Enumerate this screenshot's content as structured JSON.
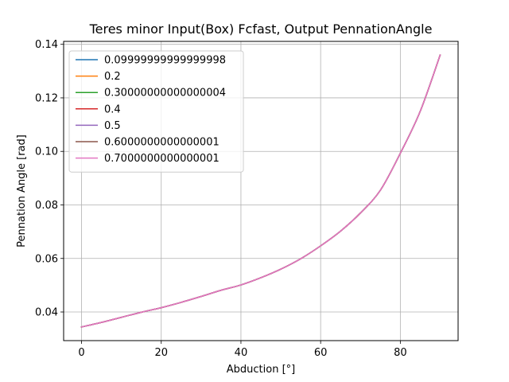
{
  "chart_data": {
    "type": "line",
    "title": "Teres minor Input(Box) Fcfast, Output PennationAngle",
    "xlabel": "Abduction [°]",
    "ylabel": "Pennation Angle [rad]",
    "xlim": [
      -4.5,
      94.5
    ],
    "ylim": [
      0.0293,
      0.1411
    ],
    "xticks": [
      0,
      20,
      40,
      60,
      80
    ],
    "xtick_labels": [
      "0",
      "20",
      "40",
      "60",
      "80"
    ],
    "yticks": [
      0.04,
      0.06,
      0.08,
      0.1,
      0.12,
      0.14
    ],
    "ytick_labels": [
      "0.04",
      "0.06",
      "0.08",
      "0.10",
      "0.12",
      "0.14"
    ],
    "grid": true,
    "legend_position": "top-left",
    "x": [
      0,
      5,
      10,
      15,
      20,
      25,
      30,
      35,
      40,
      45,
      50,
      55,
      60,
      65,
      70,
      75,
      80,
      85,
      90
    ],
    "series": [
      {
        "name": "0.09999999999999998",
        "color": "#1f77b4",
        "values": [
          0.0344,
          0.0361,
          0.038,
          0.0399,
          0.0416,
          0.0436,
          0.0458,
          0.0481,
          0.0501,
          0.0528,
          0.056,
          0.0599,
          0.0647,
          0.0702,
          0.077,
          0.0855,
          0.0993,
          0.115,
          0.136
        ]
      },
      {
        "name": "0.2",
        "color": "#ff7f0e",
        "values": [
          0.0344,
          0.0361,
          0.038,
          0.0399,
          0.0416,
          0.0436,
          0.0458,
          0.0481,
          0.0501,
          0.0528,
          0.056,
          0.0599,
          0.0647,
          0.0702,
          0.077,
          0.0855,
          0.0993,
          0.115,
          0.136
        ]
      },
      {
        "name": "0.30000000000000004",
        "color": "#2ca02c",
        "values": [
          0.0344,
          0.0361,
          0.038,
          0.0399,
          0.0416,
          0.0436,
          0.0458,
          0.0481,
          0.0501,
          0.0528,
          0.056,
          0.0599,
          0.0647,
          0.0702,
          0.077,
          0.0855,
          0.0993,
          0.115,
          0.136
        ]
      },
      {
        "name": "0.4",
        "color": "#d62728",
        "values": [
          0.0344,
          0.0361,
          0.038,
          0.0399,
          0.0416,
          0.0436,
          0.0458,
          0.0481,
          0.0501,
          0.0528,
          0.056,
          0.0599,
          0.0647,
          0.0702,
          0.077,
          0.0855,
          0.0993,
          0.115,
          0.136
        ]
      },
      {
        "name": "0.5",
        "color": "#9467bd",
        "values": [
          0.0344,
          0.0361,
          0.038,
          0.0399,
          0.0416,
          0.0436,
          0.0458,
          0.0481,
          0.0501,
          0.0528,
          0.056,
          0.0599,
          0.0647,
          0.0702,
          0.077,
          0.0855,
          0.0993,
          0.115,
          0.136
        ]
      },
      {
        "name": "0.6000000000000001",
        "color": "#8c564b",
        "values": [
          0.0344,
          0.0361,
          0.038,
          0.0399,
          0.0416,
          0.0436,
          0.0458,
          0.0481,
          0.0501,
          0.0528,
          0.056,
          0.0599,
          0.0647,
          0.0702,
          0.077,
          0.0855,
          0.0993,
          0.115,
          0.136
        ]
      },
      {
        "name": "0.7000000000000001",
        "color": "#e377c2",
        "values": [
          0.0344,
          0.0361,
          0.038,
          0.0399,
          0.0416,
          0.0436,
          0.0458,
          0.0481,
          0.0501,
          0.0528,
          0.056,
          0.0599,
          0.0647,
          0.0702,
          0.077,
          0.0855,
          0.0993,
          0.115,
          0.136
        ]
      }
    ]
  }
}
